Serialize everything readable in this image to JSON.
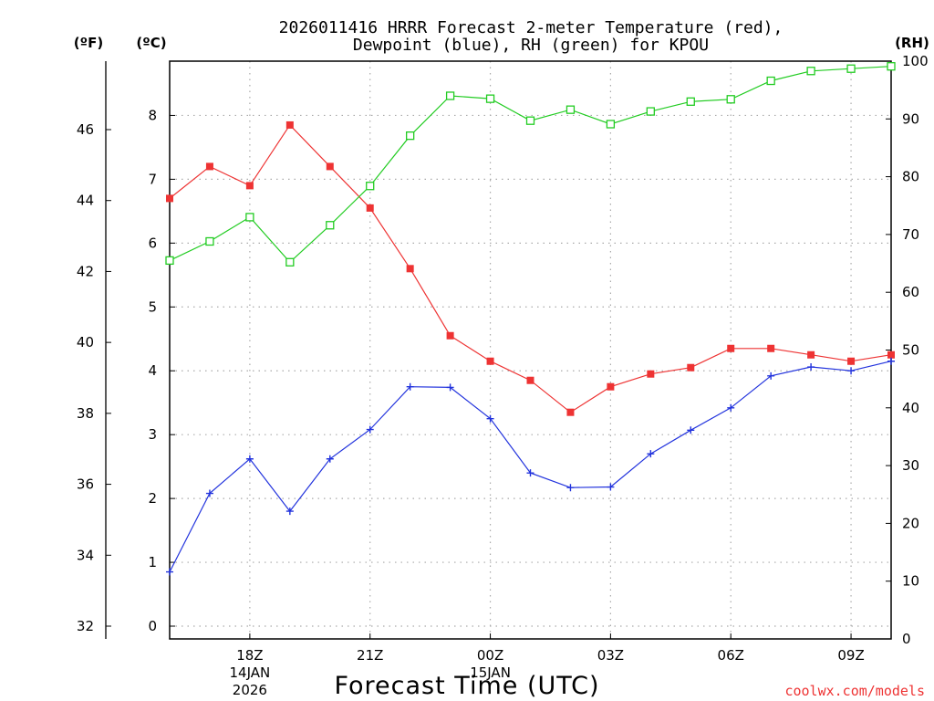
{
  "chart_data": {
    "type": "line",
    "title_line1": "2026011416 HRRR Forecast 2-meter Temperature (red),",
    "title_line2": "Dewpoint (blue), RH (green) for KPOU",
    "xlabel": "Forecast Time (UTC)",
    "credit": "coolwx.com/models",
    "unit_f": "(ºF)",
    "unit_c": "(ºC)",
    "unit_rh": "(RH)",
    "hours": [
      16,
      17,
      18,
      19,
      20,
      21,
      22,
      23,
      24,
      25,
      26,
      27,
      28,
      29,
      30,
      31,
      32,
      33,
      34
    ],
    "x_ticks": [
      {
        "hour": 18,
        "label": "18Z",
        "sub1": "14JAN",
        "sub2": "2026"
      },
      {
        "hour": 21,
        "label": "21Z",
        "sub1": "",
        "sub2": ""
      },
      {
        "hour": 24,
        "label": "00Z",
        "sub1": "15JAN",
        "sub2": ""
      },
      {
        "hour": 27,
        "label": "03Z",
        "sub1": "",
        "sub2": ""
      },
      {
        "hour": 30,
        "label": "06Z",
        "sub1": "",
        "sub2": ""
      },
      {
        "hour": 33,
        "label": "09Z",
        "sub1": "",
        "sub2": ""
      }
    ],
    "xlim": [
      16,
      34
    ],
    "ylim_c": [
      -0.2,
      8.85
    ],
    "ylim_rh": [
      0,
      100
    ],
    "c_ticks": [
      "0",
      "1",
      "2",
      "3",
      "4",
      "5",
      "6",
      "7",
      "8"
    ],
    "f_ticks": [
      "32",
      "34",
      "36",
      "38",
      "40",
      "42",
      "44",
      "46"
    ],
    "rh_ticks": [
      "0",
      "10",
      "20",
      "30",
      "40",
      "50",
      "60",
      "70",
      "80",
      "90",
      "100"
    ],
    "series": [
      {
        "name": "Temperature",
        "unit": "C",
        "color": "#ee3333",
        "marker": "filled-square",
        "values": [
          6.7,
          7.2,
          6.9,
          7.85,
          7.2,
          6.55,
          5.6,
          4.55,
          4.15,
          3.85,
          3.35,
          3.75,
          3.95,
          4.05,
          4.35,
          4.35,
          4.25,
          4.15,
          4.25
        ]
      },
      {
        "name": "Dewpoint",
        "unit": "C",
        "color": "#2233dd",
        "marker": "plus",
        "values": [
          0.85,
          2.08,
          2.62,
          1.8,
          2.62,
          3.08,
          3.75,
          3.74,
          3.25,
          2.4,
          2.17,
          2.18,
          2.7,
          3.07,
          3.42,
          3.92,
          4.06,
          4.0,
          4.15
        ]
      },
      {
        "name": "RH",
        "unit": "%",
        "color": "#22cc22",
        "marker": "open-square",
        "values": [
          65.5,
          68.8,
          73.0,
          65.2,
          71.6,
          78.4,
          87.1,
          94.0,
          93.5,
          89.7,
          91.6,
          89.1,
          91.3,
          93.0,
          93.4,
          96.6,
          98.3,
          98.7,
          99.1
        ]
      }
    ]
  }
}
